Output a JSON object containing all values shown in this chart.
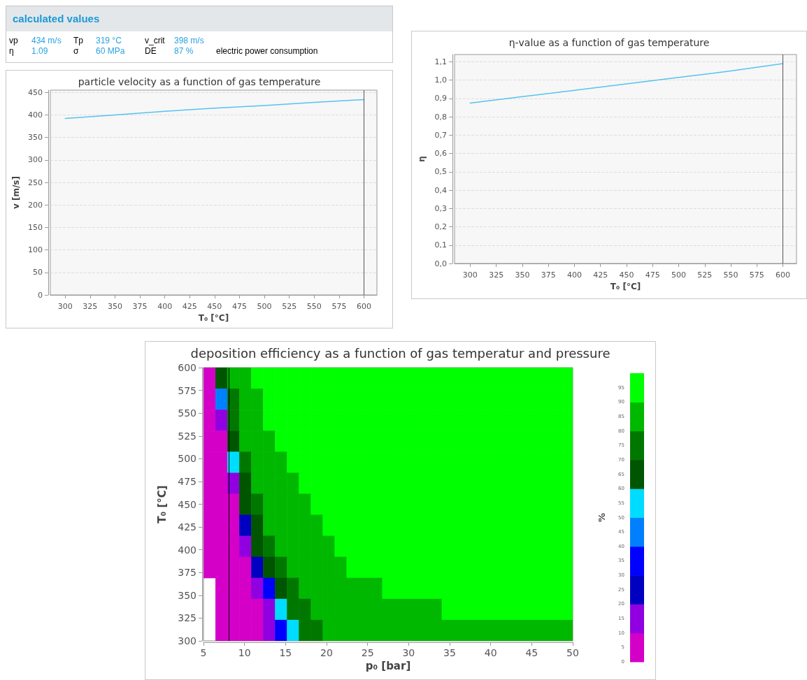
{
  "chart_data": [
    {
      "type": "other",
      "title": "calculated values",
      "annotations": [
        "vp",
        "434 m/s",
        "Tp",
        "319 °C",
        "v_crit",
        "398 m/s",
        "η",
        "1.09",
        "σ",
        "60 MPa",
        "DE",
        "87 %",
        "electric power consumption"
      ]
    },
    {
      "type": "line",
      "title": "particle velocity as a function of gas temperature",
      "xlabel": "T₀ [°C]",
      "ylabel": "v [m/s]",
      "x": [
        300,
        350,
        400,
        450,
        500,
        550,
        600
      ],
      "series": [
        {
          "color": "#55c3f0",
          "values": [
            392,
            400,
            408,
            415,
            421,
            428,
            434
          ]
        }
      ],
      "xlim": [
        285,
        613
      ],
      "xticks": [
        300,
        325,
        350,
        375,
        400,
        425,
        450,
        475,
        500,
        525,
        550,
        575,
        600
      ],
      "ylim": [
        0,
        455
      ],
      "yticks": [
        0,
        50,
        100,
        150,
        200,
        250,
        300,
        350,
        400,
        450
      ],
      "grid": "y",
      "ref_lines": [
        {
          "axis": "x",
          "value": 600,
          "color": "#555555"
        }
      ]
    },
    {
      "type": "line",
      "title": "η-value as a function of gas temperature",
      "xlabel": "T₀ [°C]",
      "ylabel": "η",
      "x": [
        300,
        350,
        400,
        450,
        500,
        550,
        600
      ],
      "series": [
        {
          "color": "#55c3f0",
          "values": [
            0.875,
            0.91,
            0.945,
            0.98,
            1.015,
            1.05,
            1.09
          ]
        }
      ],
      "xlim": [
        285,
        613
      ],
      "xticks": [
        300,
        325,
        350,
        375,
        400,
        425,
        450,
        475,
        500,
        525,
        550,
        575,
        600
      ],
      "ylim": [
        0,
        1.14
      ],
      "yticks": [
        {
          "value": 0,
          "label": "0,0"
        },
        {
          "value": 0.1,
          "label": "0,1"
        },
        {
          "value": 0.2,
          "label": "0,2"
        },
        {
          "value": 0.3,
          "label": "0,3"
        },
        {
          "value": 0.4,
          "label": "0,4"
        },
        {
          "value": 0.5,
          "label": "0,5"
        },
        {
          "value": 0.6,
          "label": "0,6"
        },
        {
          "value": 0.7,
          "label": "0,7"
        },
        {
          "value": 0.8,
          "label": "0,8"
        },
        {
          "value": 0.9,
          "label": "0,9"
        },
        {
          "value": 1.0,
          "label": "1,0"
        },
        {
          "value": 1.1,
          "label": "1,1"
        }
      ],
      "grid": "y",
      "ref_lines": [
        {
          "axis": "x",
          "value": 600,
          "color": "#555555"
        }
      ]
    },
    {
      "type": "heatmap",
      "title": "deposition efficiency as a function of gas temperatur and pressure",
      "xlabel": "p₀ [bar]",
      "ylabel": "T₀ [°C]",
      "clabel": "%",
      "xlim": [
        5,
        50
      ],
      "xticks": [
        5,
        10,
        15,
        20,
        25,
        30,
        35,
        40,
        45,
        50
      ],
      "ylim": [
        300,
        600
      ],
      "yticks": [
        300,
        325,
        350,
        375,
        400,
        425,
        450,
        475,
        500,
        525,
        550,
        575,
        600
      ],
      "clim": [
        0,
        100
      ],
      "cticks": [
        0,
        5,
        10,
        15,
        20,
        25,
        30,
        35,
        40,
        45,
        50,
        55,
        60,
        65,
        70,
        75,
        80,
        85,
        90,
        95
      ],
      "colors": [
        "#d400c8",
        "#9000e0",
        "#0000c0",
        "#0000ff",
        "#0080ff",
        "#00dcff",
        "#005500",
        "#007800",
        "#00b800",
        "#00ff00"
      ],
      "cells": [
        [
          5,
          65,
          85,
          85,
          95,
          95,
          95,
          95,
          95,
          95,
          95,
          95,
          95,
          95,
          95,
          95,
          95,
          95,
          95,
          95,
          95,
          95,
          95,
          95,
          95,
          95,
          95,
          95,
          95,
          95,
          95
        ],
        [
          5,
          45,
          75,
          85,
          85,
          95,
          95,
          95,
          95,
          95,
          95,
          95,
          95,
          95,
          95,
          95,
          95,
          95,
          95,
          95,
          95,
          95,
          95,
          95,
          95,
          95,
          95,
          95,
          95,
          95,
          95
        ],
        [
          5,
          15,
          75,
          85,
          85,
          95,
          95,
          95,
          95,
          95,
          95,
          95,
          95,
          95,
          95,
          95,
          95,
          95,
          95,
          95,
          95,
          95,
          95,
          95,
          95,
          95,
          95,
          95,
          95,
          95,
          95
        ],
        [
          5,
          5,
          65,
          85,
          85,
          85,
          95,
          95,
          95,
          95,
          95,
          95,
          95,
          95,
          95,
          95,
          95,
          95,
          95,
          95,
          95,
          95,
          95,
          95,
          95,
          95,
          95,
          95,
          95,
          95,
          95
        ],
        [
          5,
          5,
          55,
          75,
          85,
          85,
          85,
          95,
          95,
          95,
          95,
          95,
          95,
          95,
          95,
          95,
          95,
          95,
          95,
          95,
          95,
          95,
          95,
          95,
          95,
          95,
          95,
          95,
          95,
          95,
          95
        ],
        [
          5,
          5,
          15,
          65,
          85,
          85,
          85,
          85,
          95,
          95,
          95,
          95,
          95,
          95,
          95,
          95,
          95,
          95,
          95,
          95,
          95,
          95,
          95,
          95,
          95,
          95,
          95,
          95,
          95,
          95,
          95
        ],
        [
          5,
          5,
          5,
          65,
          75,
          85,
          85,
          85,
          85,
          95,
          95,
          95,
          95,
          95,
          95,
          95,
          95,
          95,
          95,
          95,
          95,
          95,
          95,
          95,
          95,
          95,
          95,
          95,
          95,
          95,
          95
        ],
        [
          5,
          5,
          5,
          25,
          65,
          85,
          85,
          85,
          85,
          85,
          95,
          95,
          95,
          95,
          95,
          95,
          95,
          95,
          95,
          95,
          95,
          95,
          95,
          95,
          95,
          95,
          95,
          95,
          95,
          95,
          95
        ],
        [
          5,
          5,
          5,
          15,
          65,
          75,
          85,
          85,
          85,
          85,
          85,
          95,
          95,
          95,
          95,
          95,
          95,
          95,
          95,
          95,
          95,
          95,
          95,
          95,
          95,
          95,
          95,
          95,
          95,
          95,
          95
        ],
        [
          5,
          5,
          5,
          5,
          25,
          65,
          75,
          85,
          85,
          85,
          85,
          85,
          95,
          95,
          95,
          95,
          95,
          95,
          95,
          95,
          95,
          95,
          95,
          95,
          95,
          95,
          95,
          95,
          95,
          95,
          95
        ],
        [
          null,
          5,
          5,
          5,
          15,
          35,
          65,
          75,
          85,
          85,
          85,
          85,
          85,
          85,
          85,
          95,
          95,
          95,
          95,
          95,
          95,
          95,
          95,
          95,
          95,
          95,
          95,
          95,
          95,
          95,
          95
        ],
        [
          null,
          5,
          5,
          5,
          5,
          15,
          55,
          75,
          75,
          85,
          85,
          85,
          85,
          85,
          85,
          85,
          85,
          85,
          85,
          85,
          95,
          95,
          95,
          95,
          95,
          95,
          95,
          95,
          95,
          95,
          95
        ],
        [
          null,
          5,
          5,
          5,
          5,
          15,
          35,
          55,
          75,
          75,
          85,
          85,
          85,
          85,
          85,
          85,
          85,
          85,
          85,
          85,
          85,
          85,
          85,
          85,
          85,
          85,
          85,
          85,
          85,
          85,
          85
        ]
      ],
      "ref_lines": [
        {
          "axis": "x",
          "value": 8.1,
          "color": "#000000"
        }
      ]
    }
  ]
}
